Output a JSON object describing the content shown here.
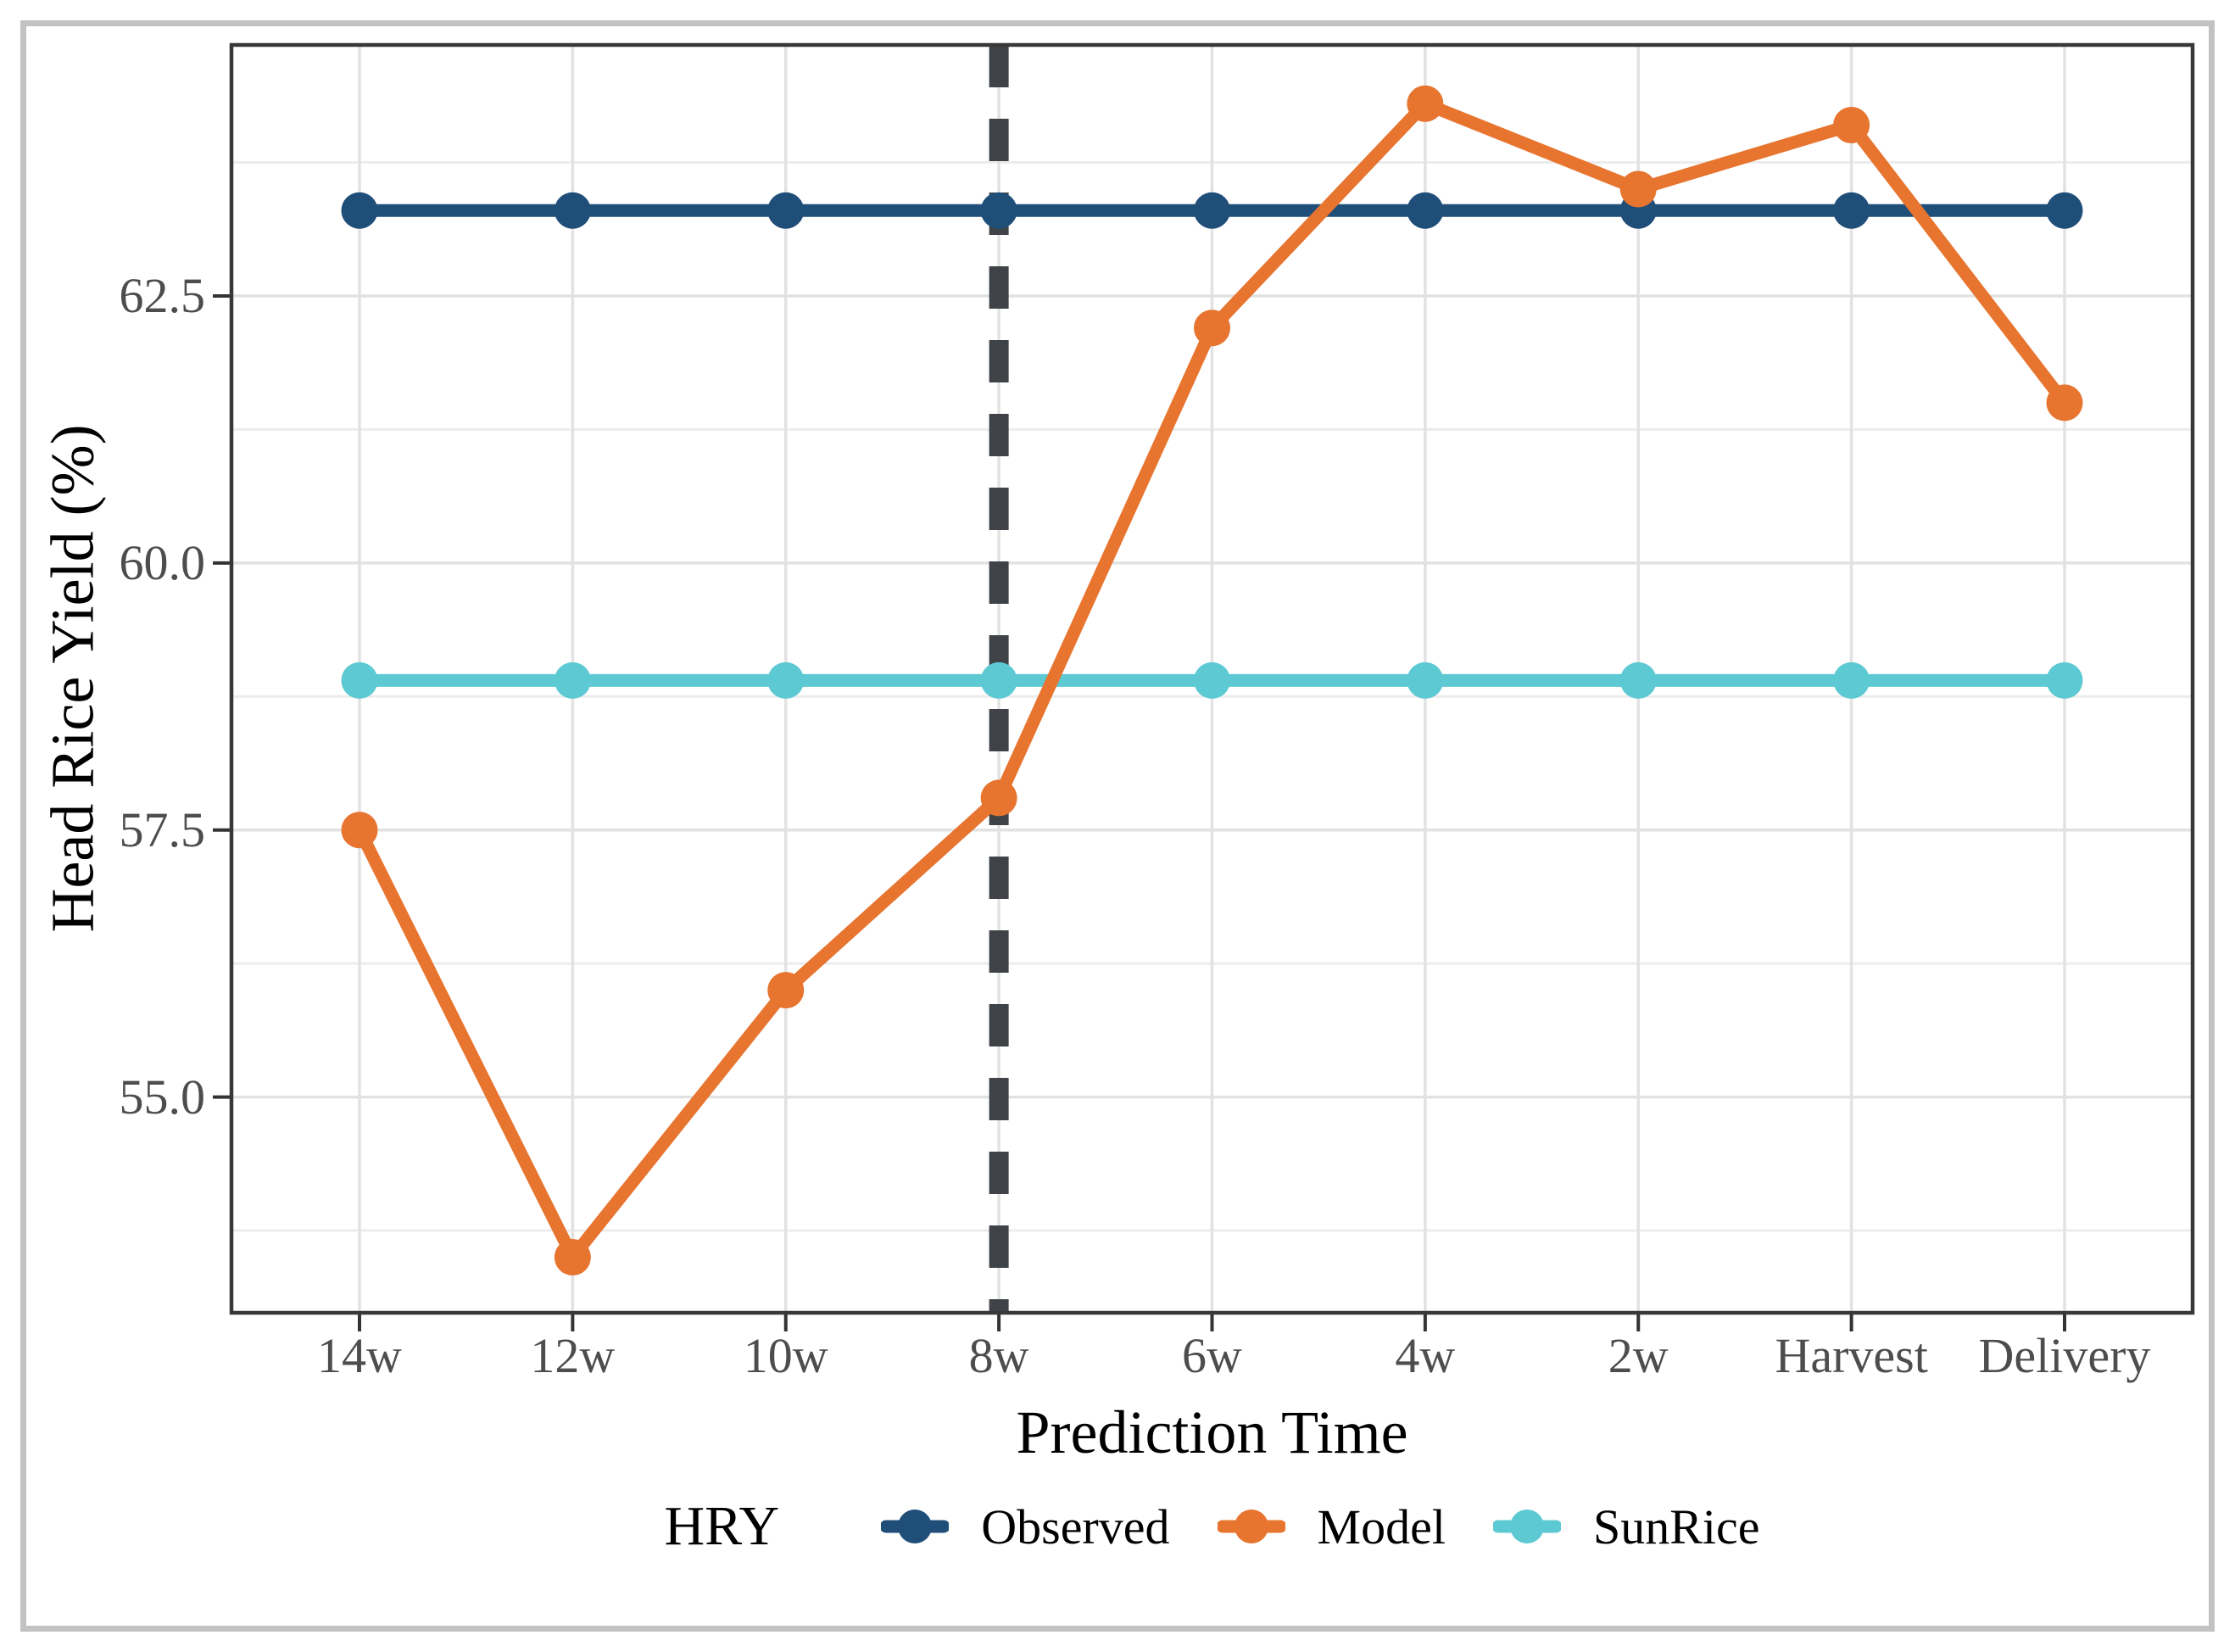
{
  "figure": {
    "border_color": "#C2C2C2",
    "background_color": "#FFFFFF"
  },
  "chart_data": {
    "type": "line",
    "title": "",
    "xlabel": "Prediction Time",
    "ylabel": "Head Rice Yield (%)",
    "categories": [
      "14w",
      "12w",
      "10w",
      "8w",
      "6w",
      "4w",
      "2w",
      "Harvest",
      "Delivery"
    ],
    "series": [
      {
        "name": "Observed",
        "color": "#1F4E79",
        "values": [
          63.3,
          63.3,
          63.3,
          63.3,
          63.3,
          63.3,
          63.3,
          63.3,
          63.3
        ]
      },
      {
        "name": "Model",
        "color": "#E7742F",
        "values": [
          57.5,
          53.5,
          56.0,
          57.8,
          62.2,
          64.3,
          63.5,
          64.1,
          61.5
        ]
      },
      {
        "name": "SunRice",
        "color": "#5DC9D3",
        "values": [
          58.9,
          58.9,
          58.9,
          58.9,
          58.9,
          58.9,
          58.9,
          58.9,
          58.9
        ]
      }
    ],
    "y_ticks": [
      55.0,
      57.5,
      60.0,
      62.5
    ],
    "y_tick_labels": [
      "55.0",
      "57.5",
      "60.0",
      "62.5"
    ],
    "y_minor_gridlines": [
      53.75,
      56.25,
      58.75,
      61.25,
      63.75
    ],
    "ylim": [
      52.98,
      64.85
    ],
    "reference_line": {
      "category": "8w",
      "style": "dashed",
      "color": "#3F4347"
    },
    "legend": {
      "title": "HRY",
      "position": "bottom"
    },
    "grid": true,
    "colors": {
      "gridline_major": "#E2E2E2",
      "gridline_minor": "#ECECEC",
      "panel_border": "#383838",
      "tick_mark": "#333333",
      "tick_label": "#4D4D4D",
      "axis_title": "#000000"
    }
  }
}
